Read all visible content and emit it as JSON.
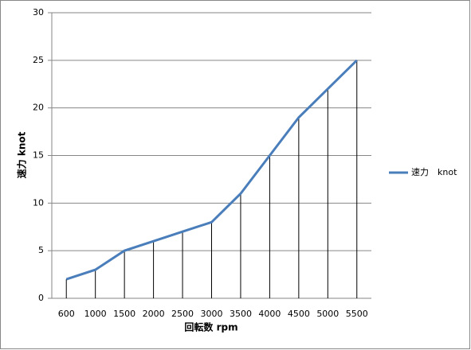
{
  "chart_data": {
    "type": "line",
    "x_label": "回転数 rpm",
    "y_label": "速力 knot",
    "categories": [
      "600",
      "1000",
      "1500",
      "2000",
      "2500",
      "3000",
      "3500",
      "4000",
      "4500",
      "5000",
      "5500"
    ],
    "series": [
      {
        "name": "速力　knot",
        "color": "#4a7ebb",
        "values": [
          2,
          3,
          5,
          6,
          7,
          8,
          11,
          15,
          19,
          22,
          25
        ]
      }
    ],
    "drop_lines": true,
    "ylim": [
      0,
      30
    ],
    "yticks": [
      0,
      5,
      10,
      15,
      20,
      25,
      30
    ],
    "grid": true,
    "legend": "right"
  }
}
